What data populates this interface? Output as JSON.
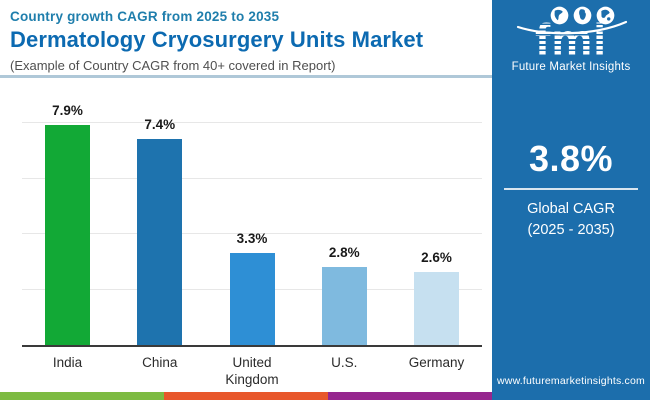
{
  "header": {
    "eyebrow": "Country growth CAGR from 2025 to 2035",
    "title": "Dermatology Cryosurgery Units Market",
    "subtitle": "(Example of Country CAGR from 40+ covered in Report)"
  },
  "sidebar": {
    "bg_color": "#1C6EAC",
    "logo": {
      "text": "fmi",
      "tagline": "Future Market Insights",
      "globe_icons": [
        "americas-globe-icon",
        "europe-africa-globe-icon",
        "asia-oceania-globe-icon"
      ]
    },
    "stat": {
      "value": "3.8%",
      "label_line1": "Global CAGR",
      "label_line2": "(2025 - 2035)"
    },
    "website": "www.futuremarketinsights.com"
  },
  "chart_data": {
    "type": "bar",
    "title": "Dermatology Cryosurgery Units Market",
    "subtitle": "Country growth CAGR from 2025 to 2035",
    "categories": [
      "India",
      "China",
      "United Kingdom",
      "U.S.",
      "Germany"
    ],
    "values": [
      7.9,
      7.4,
      3.3,
      2.8,
      2.6
    ],
    "value_labels": [
      "7.9%",
      "7.4%",
      "3.3%",
      "2.8%",
      "2.6%"
    ],
    "bar_colors": [
      "#12A936",
      "#1E73AE",
      "#2E8FD5",
      "#7FBADF",
      "#C6E0F0"
    ],
    "xlabel": "",
    "ylabel": "",
    "ylim": [
      0,
      8.8
    ],
    "gridline_values": [
      2,
      4,
      6,
      8
    ],
    "grid": true,
    "legend": false
  },
  "footer": {
    "segment_colors": [
      "#7DBB42",
      "#E8572B",
      "#96268E"
    ]
  }
}
